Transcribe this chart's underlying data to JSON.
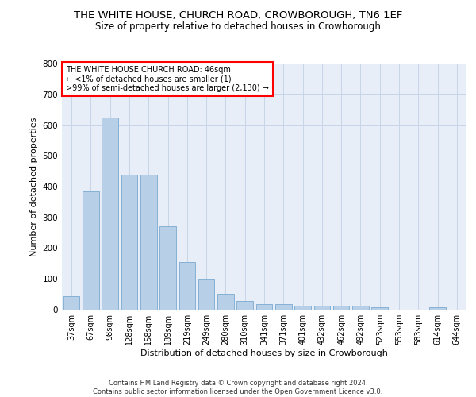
{
  "title": "THE WHITE HOUSE, CHURCH ROAD, CROWBOROUGH, TN6 1EF",
  "subtitle": "Size of property relative to detached houses in Crowborough",
  "xlabel": "Distribution of detached houses by size in Crowborough",
  "ylabel": "Number of detached properties",
  "categories": [
    "37sqm",
    "67sqm",
    "98sqm",
    "128sqm",
    "158sqm",
    "189sqm",
    "219sqm",
    "249sqm",
    "280sqm",
    "310sqm",
    "341sqm",
    "371sqm",
    "401sqm",
    "432sqm",
    "462sqm",
    "492sqm",
    "523sqm",
    "553sqm",
    "583sqm",
    "614sqm",
    "644sqm"
  ],
  "values": [
    45,
    385,
    625,
    440,
    440,
    270,
    155,
    98,
    52,
    28,
    17,
    17,
    12,
    12,
    12,
    14,
    8,
    0,
    0,
    8,
    0
  ],
  "bar_color": "#b8cfe8",
  "bar_edge_color": "#7aaad0",
  "annotation_text": "THE WHITE HOUSE CHURCH ROAD: 46sqm\n← <1% of detached houses are smaller (1)\n>99% of semi-detached houses are larger (2,130) →",
  "ylim": [
    0,
    800
  ],
  "yticks": [
    0,
    100,
    200,
    300,
    400,
    500,
    600,
    700,
    800
  ],
  "grid_color": "#c8d4e8",
  "bg_color": "#e8eef8",
  "footer": "Contains HM Land Registry data © Crown copyright and database right 2024.\nContains public sector information licensed under the Open Government Licence v3.0.",
  "title_fontsize": 9.5,
  "subtitle_fontsize": 8.5,
  "xlabel_fontsize": 8,
  "ylabel_fontsize": 8,
  "annotation_fontsize": 7,
  "tick_fontsize": 7,
  "ytick_fontsize": 7.5,
  "footer_fontsize": 6
}
